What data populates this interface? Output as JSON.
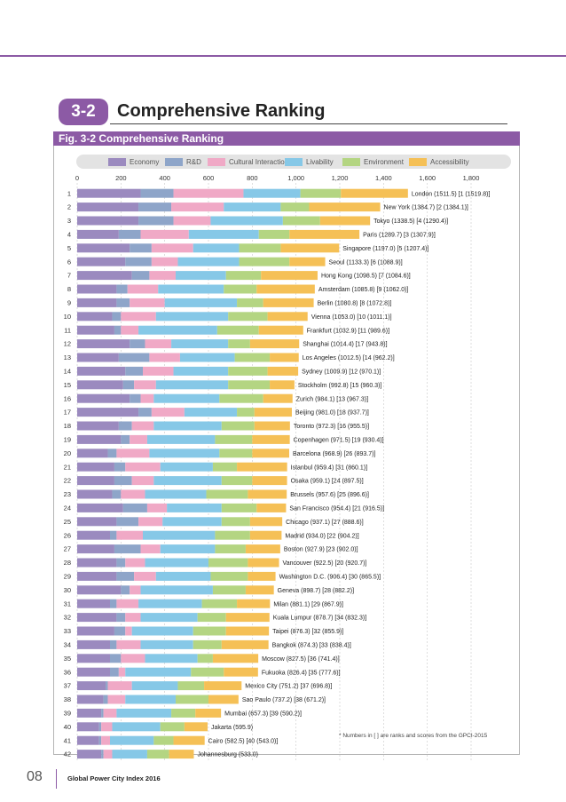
{
  "section": {
    "number": "3-2",
    "title": "Comprehensive Ranking"
  },
  "figure": {
    "title": "Fig. 3-2  Comprehensive Ranking"
  },
  "footnote": "* Numbers in  [   ] are ranks and scores from the GPCI-2015",
  "footer": {
    "page_number": "08",
    "publication": "Global Power City Index 2016"
  },
  "colors": {
    "Economy": "#9b8abf",
    "R&D": "#8ea5c9",
    "Cultural Interaction": "#f0a9c6",
    "Livability": "#86c8e7",
    "Environment": "#b4d582",
    "Accessibility": "#f5c056"
  },
  "chart_data": {
    "type": "bar",
    "orientation": "horizontal",
    "stacked": true,
    "title": "Comprehensive Ranking",
    "xlim": [
      0,
      1800
    ],
    "xticks": [
      "0",
      "200",
      "400",
      "600",
      "800",
      "1,000",
      "1,200",
      "1,400",
      "1,600",
      "1,800"
    ],
    "legend_position": "top",
    "series_names": [
      "Economy",
      "R&D",
      "Cultural Interaction",
      "Livability",
      "Environment",
      "Accessibility"
    ],
    "rows": [
      {
        "rank": "1",
        "city": "London",
        "total": 1511.5,
        "label": "London (1511.5) [1 (1519.8)]",
        "values": [
          290,
          150,
          320,
          260,
          185,
          306.5
        ]
      },
      {
        "rank": "2",
        "city": "New York",
        "total": 1384.7,
        "label": "New York (1384.7) [2 (1384.1)]",
        "values": [
          280,
          150,
          240,
          260,
          130,
          324.7
        ]
      },
      {
        "rank": "3",
        "city": "Tokyo",
        "total": 1338.5,
        "label": "Tokyo (1338.5) [4 (1290.4)]",
        "values": [
          280,
          160,
          170,
          330,
          170,
          228.5
        ]
      },
      {
        "rank": "4",
        "city": "Paris",
        "total": 1289.7,
        "label": "Paris (1289.7) [3 (1307.9)]",
        "values": [
          190,
          100,
          220,
          320,
          140,
          319.7
        ]
      },
      {
        "rank": "5",
        "city": "Singapore",
        "total": 1197.0,
        "label": "Singapore (1197.0) [5 (1207.4)]",
        "values": [
          240,
          100,
          190,
          210,
          190,
          267
        ]
      },
      {
        "rank": "6",
        "city": "Seoul",
        "total": 1133.3,
        "label": "Seoul (1133.3) [6 (1088.9)]",
        "values": [
          220,
          120,
          120,
          280,
          230,
          163.3
        ]
      },
      {
        "rank": "7",
        "city": "Hong Kong",
        "total": 1098.5,
        "label": "Hong Kong (1098.5) [7 (1084.6)]",
        "values": [
          250,
          80,
          120,
          230,
          160,
          258.5
        ]
      },
      {
        "rank": "8",
        "city": "Amsterdam",
        "total": 1085.8,
        "label": "Amsterdam (1085.8) [9 (1062.0)]",
        "values": [
          180,
          50,
          140,
          300,
          150,
          265.8
        ]
      },
      {
        "rank": "9",
        "city": "Berlin",
        "total": 1080.8,
        "label": "Berlin (1080.8) [8 (1072.8)]",
        "values": [
          180,
          60,
          160,
          330,
          120,
          230.8
        ]
      },
      {
        "rank": "10",
        "city": "Vienna",
        "total": 1053.0,
        "label": "Vienna (1053.0) [10 (1011.1)]",
        "values": [
          160,
          40,
          160,
          330,
          180,
          183
        ]
      },
      {
        "rank": "11",
        "city": "Frankfurt",
        "total": 1032.9,
        "label": "Frankfurt (1032.9) [11 (989.6)]",
        "values": [
          170,
          30,
          80,
          360,
          190,
          202.9
        ]
      },
      {
        "rank": "12",
        "city": "Shanghai",
        "total": 1014.4,
        "label": "Shanghai (1014.4) [17 (943.8)]",
        "values": [
          240,
          70,
          120,
          260,
          100,
          224.4
        ]
      },
      {
        "rank": "13",
        "city": "Los Angeles",
        "total": 1012.5,
        "label": "Los Angeles (1012.5) [14 (962.2)]",
        "values": [
          190,
          140,
          140,
          250,
          160,
          132.5
        ]
      },
      {
        "rank": "14",
        "city": "Sydney",
        "total": 1009.9,
        "label": "Sydney (1009.9) [12 (970.1)]",
        "values": [
          220,
          80,
          140,
          250,
          180,
          139.9
        ]
      },
      {
        "rank": "15",
        "city": "Stockholm",
        "total": 992.8,
        "label": "Stockholm (992.8) [15 (960.3)]",
        "values": [
          210,
          50,
          100,
          330,
          190,
          112.8
        ]
      },
      {
        "rank": "16",
        "city": "Zurich",
        "total": 984.1,
        "label": "Zurich (984.1) [13 (967.3)]",
        "values": [
          240,
          50,
          60,
          300,
          200,
          134.1
        ]
      },
      {
        "rank": "17",
        "city": "Beijing",
        "total": 981.0,
        "label": "Beijing (981.0) [18 (937.7)]",
        "values": [
          280,
          60,
          150,
          240,
          80,
          171
        ]
      },
      {
        "rank": "18",
        "city": "Toronto",
        "total": 972.3,
        "label": "Toronto (972.3) [16 (955.5)]",
        "values": [
          190,
          60,
          100,
          310,
          150,
          162.3
        ]
      },
      {
        "rank": "19",
        "city": "Copenhagen",
        "total": 971.5,
        "label": "Copenhagen (971.5) [19 (930.4)]",
        "values": [
          200,
          40,
          80,
          310,
          170,
          171.5
        ]
      },
      {
        "rank": "20",
        "city": "Barcelona",
        "total": 968.9,
        "label": "Barcelona (968.9) [26 (893.7)]",
        "values": [
          140,
          40,
          150,
          320,
          150,
          168.9
        ]
      },
      {
        "rank": "21",
        "city": "Istanbul",
        "total": 959.4,
        "label": "Istanbul (959.4) [31 (860.1)]",
        "values": [
          170,
          50,
          160,
          240,
          110,
          229.4
        ]
      },
      {
        "rank": "22",
        "city": "Osaka",
        "total": 959.1,
        "label": "Osaka (959.1) [24 (897.5)]",
        "values": [
          170,
          80,
          100,
          310,
          140,
          159.1
        ]
      },
      {
        "rank": "23",
        "city": "Brussels",
        "total": 957.6,
        "label": "Brussels (957.6) [25 (896.6)]",
        "values": [
          160,
          40,
          110,
          280,
          190,
          177.6
        ]
      },
      {
        "rank": "24",
        "city": "San Francisco",
        "total": 954.4,
        "label": "San Francisco (954.4) [21 (916.5)]",
        "values": [
          210,
          110,
          90,
          250,
          160,
          134.4
        ]
      },
      {
        "rank": "25",
        "city": "Chicago",
        "total": 937.1,
        "label": "Chicago (937.1) [27 (888.6)]",
        "values": [
          180,
          100,
          110,
          270,
          130,
          147.1
        ]
      },
      {
        "rank": "26",
        "city": "Madrid",
        "total": 934.0,
        "label": "Madrid (934.0) [22 (904.2)]",
        "values": [
          150,
          30,
          120,
          330,
          160,
          144
        ]
      },
      {
        "rank": "27",
        "city": "Boston",
        "total": 927.9,
        "label": "Boston (927.9) [23 (902.0)]",
        "values": [
          170,
          120,
          90,
          250,
          140,
          157.9
        ]
      },
      {
        "rank": "28",
        "city": "Vancouver",
        "total": 922.5,
        "label": "Vancouver (922.5) [20 (920.7)]",
        "values": [
          180,
          40,
          90,
          290,
          180,
          142.5
        ]
      },
      {
        "rank": "29",
        "city": "Washington D.C.",
        "total": 906.4,
        "label": "Washington D.C. (906.4) [30 (865.5)]",
        "values": [
          180,
          80,
          100,
          250,
          170,
          126.4
        ]
      },
      {
        "rank": "30",
        "city": "Geneva",
        "total": 898.7,
        "label": "Geneva (898.7) [28 (882.2)]",
        "values": [
          200,
          40,
          50,
          330,
          150,
          128.7
        ]
      },
      {
        "rank": "31",
        "city": "Milan",
        "total": 881.1,
        "label": "Milan (881.1) [29 (867.9)]",
        "values": [
          150,
          30,
          100,
          290,
          160,
          151.1
        ]
      },
      {
        "rank": "32",
        "city": "Kuala Lumpur",
        "total": 878.7,
        "label": "Kuala Lumpur (878.7) [34 (832.3)]",
        "values": [
          180,
          40,
          70,
          260,
          130,
          198.7
        ]
      },
      {
        "rank": "33",
        "city": "Taipei",
        "total": 876.3,
        "label": "Taipei (876.3) [32 (855.9)]",
        "values": [
          170,
          50,
          30,
          280,
          150,
          196.3
        ]
      },
      {
        "rank": "34",
        "city": "Bangkok",
        "total": 874.3,
        "label": "Bangkok (874.3) [33 (838.4)]",
        "values": [
          150,
          30,
          110,
          240,
          130,
          214.3
        ]
      },
      {
        "rank": "35",
        "city": "Moscow",
        "total": 827.5,
        "label": "Moscow (827.5) [36 (741.4)]",
        "values": [
          150,
          50,
          110,
          240,
          70,
          207.5
        ]
      },
      {
        "rank": "36",
        "city": "Fukuoka",
        "total": 826.4,
        "label": "Fukuoka (826.4) [35 (777.6)]",
        "values": [
          150,
          40,
          30,
          300,
          150,
          156.4
        ]
      },
      {
        "rank": "37",
        "city": "Mexico City",
        "total": 751.2,
        "label": "Mexico City (751.2) [37 (696.8)]",
        "values": [
          130,
          10,
          110,
          210,
          120,
          171.2
        ]
      },
      {
        "rank": "38",
        "city": "Sao Paulo",
        "total": 737.2,
        "label": "Sao Paulo (737.2) [38 (671.2)]",
        "values": [
          120,
          20,
          80,
          230,
          150,
          137.2
        ]
      },
      {
        "rank": "39",
        "city": "Mumbai",
        "total": 657.3,
        "label": "Mumbai (657.3) [39 (590.2)]",
        "values": [
          110,
          10,
          60,
          250,
          110,
          117.3
        ]
      },
      {
        "rank": "40",
        "city": "Jakarta",
        "total": 595.9,
        "label": "Jakarta (595.9)",
        "values": [
          100,
          10,
          50,
          220,
          110,
          105.9
        ]
      },
      {
        "rank": "41",
        "city": "Cairo",
        "total": 582.5,
        "label": "Cairo (582.5) [40 (543.0)]",
        "values": [
          100,
          10,
          40,
          200,
          90,
          142.5
        ]
      },
      {
        "rank": "42",
        "city": "Johannesburg",
        "total": 533.0,
        "label": "Johannesburg (533.0)",
        "values": [
          110,
          10,
          40,
          160,
          100,
          113
        ]
      }
    ]
  }
}
